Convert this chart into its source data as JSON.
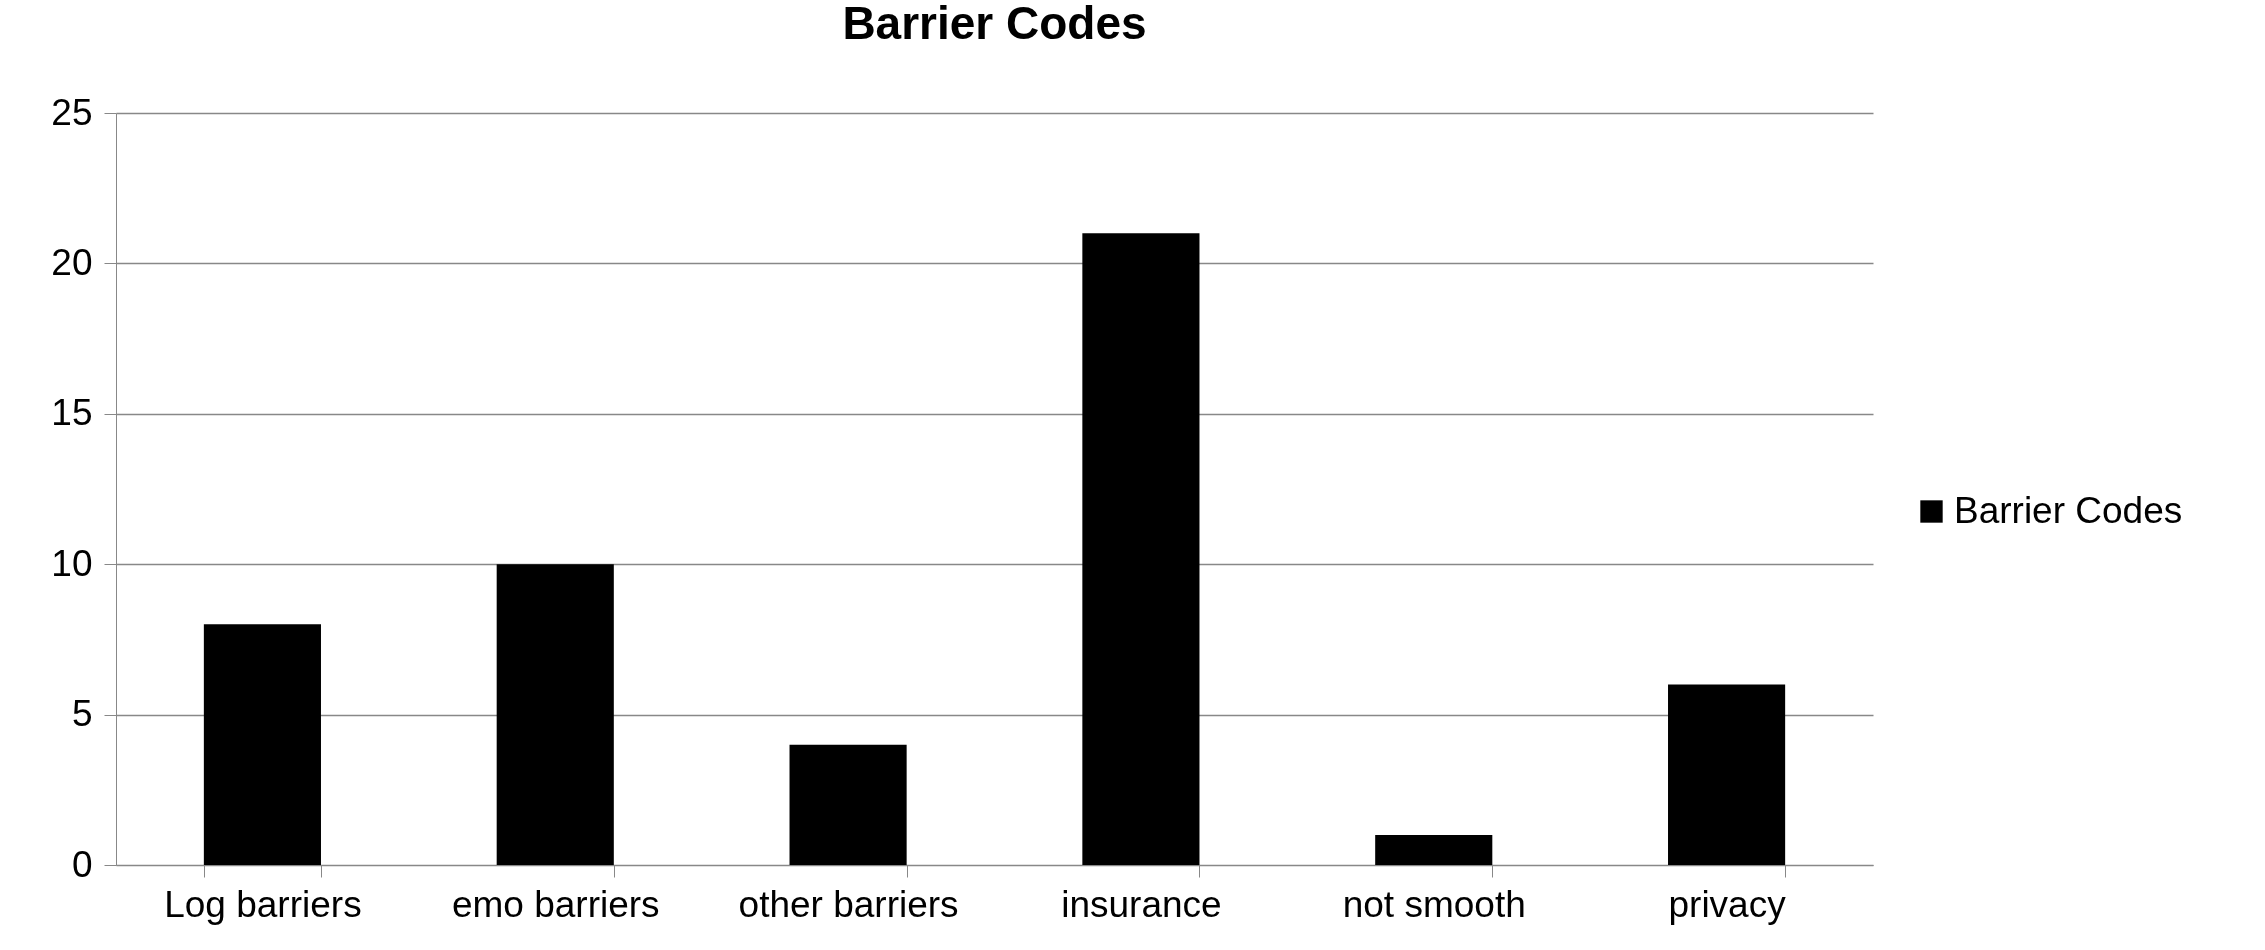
{
  "chart_data": {
    "type": "bar",
    "title": "Barrier Codes",
    "categories": [
      "Log barriers",
      "emo barriers",
      "other barriers",
      "insurance",
      "not smooth",
      "privacy"
    ],
    "series": [
      {
        "name": "Barrier Codes",
        "color": "#000000",
        "values": [
          8,
          10,
          4,
          21,
          1,
          6
        ]
      }
    ],
    "ylim": [
      0,
      25
    ],
    "yticks": [
      0,
      5,
      10,
      15,
      20,
      25
    ],
    "grid": "y",
    "legend": "right"
  }
}
